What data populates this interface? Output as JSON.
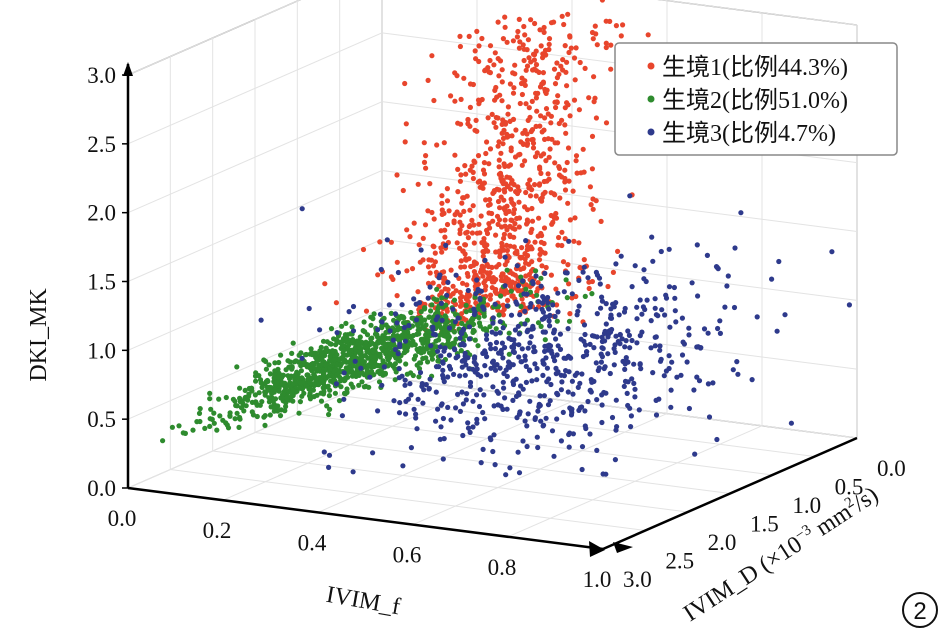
{
  "chart_data": {
    "type": "scatter",
    "projection": "3d",
    "panel_label": "2",
    "axes": {
      "x": {
        "label": "IVIM_f",
        "range": [
          0.0,
          1.0
        ],
        "ticks": [
          "0.0",
          "0.2",
          "0.4",
          "0.6",
          "0.8",
          "1.0"
        ],
        "tick_values": [
          0.0,
          0.2,
          0.4,
          0.6,
          0.8,
          1.0
        ]
      },
      "y": {
        "label": "IVIM_D (×10",
        "label_sup": "−3",
        "label_tail": " mm",
        "label_sup2": "2",
        "label_end": "/s)",
        "range": [
          0.0,
          3.0
        ],
        "ticks": [
          "0.0",
          "0.5",
          "1.0",
          "1.5",
          "2.0",
          "2.5",
          "3.0"
        ],
        "tick_values": [
          0.0,
          0.5,
          1.0,
          1.5,
          2.0,
          2.5,
          3.0
        ]
      },
      "z": {
        "label": "DKI_MK",
        "range": [
          0.0,
          3.0
        ],
        "ticks": [
          "0.0",
          "0.5",
          "1.0",
          "1.5",
          "2.0",
          "2.5",
          "3.0"
        ],
        "tick_values": [
          0.0,
          0.5,
          1.0,
          1.5,
          2.0,
          2.5,
          3.0
        ]
      }
    },
    "grid": true,
    "legend": {
      "placement": "top-right",
      "entries": [
        {
          "label": "生境1(比例44.3%)",
          "color": "#e8452c"
        },
        {
          "label": "生境2(比例51.0%)",
          "color": "#2e8b2e"
        },
        {
          "label": "生境3(比例4.7%)",
          "color": "#2e3a8c"
        }
      ]
    },
    "series": [
      {
        "name": "生境1",
        "proportion_percent": 44.3,
        "color": "#e8452c",
        "centroid": {
          "f": 0.5,
          "D": 0.8,
          "MK": 1.35
        },
        "spread": {
          "f": 0.08,
          "D": 0.35,
          "MK": 0.35
        },
        "mk_range": [
          0.95,
          3.0
        ]
      },
      {
        "name": "生境2",
        "proportion_percent": 51.0,
        "color": "#2e8b2e",
        "centroid": {
          "f": 0.2,
          "D": 1.2,
          "MK": 0.55
        },
        "spread": {
          "f": 0.12,
          "D": 0.5,
          "MK": 0.18
        },
        "mk_range": [
          0.2,
          1.05
        ]
      },
      {
        "name": "生境3",
        "proportion_percent": 4.7,
        "color": "#2e3a8c",
        "centroid": {
          "f": 0.6,
          "D": 1.5,
          "MK": 0.85
        },
        "spread": {
          "f": 0.15,
          "D": 0.7,
          "MK": 0.3
        },
        "mk_range": [
          0.1,
          2.9
        ]
      }
    ]
  }
}
